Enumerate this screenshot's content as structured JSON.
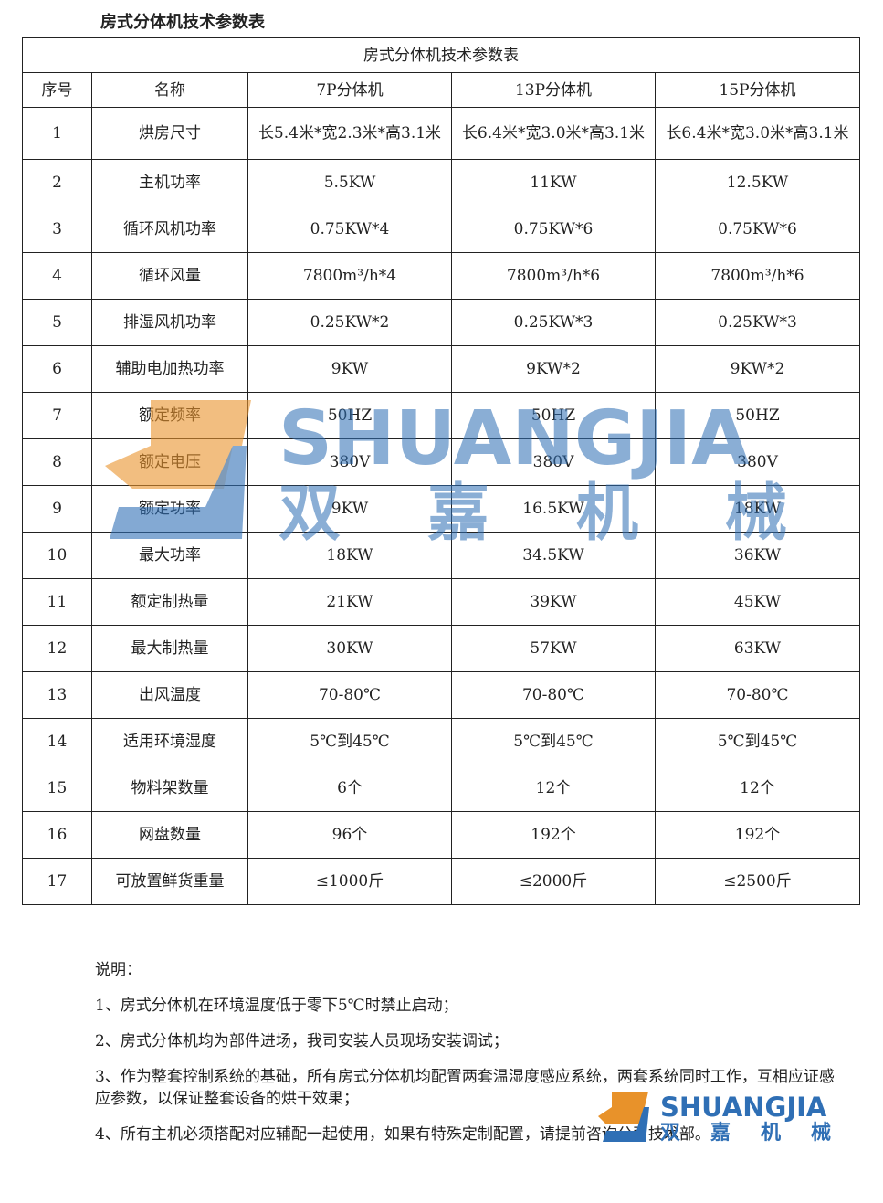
{
  "doc_title": "房式分体机技术参数表",
  "table": {
    "caption": "房式分体机技术参数表",
    "headers": [
      "序号",
      "名称",
      "7P分体机",
      "13P分体机",
      "15P分体机"
    ],
    "rows": [
      [
        "1",
        "烘房尺寸",
        "长5.4米*宽2.3米*高3.1米",
        "长6.4米*宽3.0米*高3.1米",
        "长6.4米*宽3.0米*高3.1米"
      ],
      [
        "2",
        "主机功率",
        "5.5KW",
        "11KW",
        "12.5KW"
      ],
      [
        "3",
        "循环风机功率",
        "0.75KW*4",
        "0.75KW*6",
        "0.75KW*6"
      ],
      [
        "4",
        "循环风量",
        "7800m³/h*4",
        "7800m³/h*6",
        "7800m³/h*6"
      ],
      [
        "5",
        "排湿风机功率",
        "0.25KW*2",
        "0.25KW*3",
        "0.25KW*3"
      ],
      [
        "6",
        "辅助电加热功率",
        "9KW",
        "9KW*2",
        "9KW*2"
      ],
      [
        "7",
        "额定频率",
        "50HZ",
        "50HZ",
        "50HZ"
      ],
      [
        "8",
        "额定电压",
        "380V",
        "380V",
        "380V"
      ],
      [
        "9",
        "额定功率",
        "9KW",
        "16.5KW",
        "18KW"
      ],
      [
        "10",
        "最大功率",
        "18KW",
        "34.5KW",
        "36KW"
      ],
      [
        "11",
        "额定制热量",
        "21KW",
        "39KW",
        "45KW"
      ],
      [
        "12",
        "最大制热量",
        "30KW",
        "57KW",
        "63KW"
      ],
      [
        "13",
        "出风温度",
        "70-80℃",
        "70-80℃",
        "70-80℃"
      ],
      [
        "14",
        "适用环境湿度",
        "5℃到45℃",
        "5℃到45℃",
        "5℃到45℃"
      ],
      [
        "15",
        "物料架数量",
        "6个",
        "12个",
        "12个"
      ],
      [
        "16",
        "网盘数量",
        "96个",
        "192个",
        "192个"
      ],
      [
        "17",
        "可放置鲜货重量",
        "≤1000斤",
        "≤2000斤",
        "≤2500斤"
      ]
    ]
  },
  "notes": {
    "heading": "说明：",
    "items": [
      "1、房式分体机在环境温度低于零下5℃时禁止启动；",
      "2、房式分体机均为部件进场，我司安装人员现场安装调试；",
      "3、作为整套控制系统的基础，所有房式分体机均配置两套温湿度感应系统，两套系统同时工作，互相应证感应参数，以保证整套设备的烘干效果；",
      "4、所有主机必须搭配对应辅配一起使用，如果有特殊定制配置，请提前咨询公司技术部。"
    ]
  },
  "watermark": {
    "brand": "SHUANGJIA",
    "cn": "双嘉机械",
    "colors": {
      "orange": "#e8922a",
      "blue": "#2f6fb5"
    }
  }
}
